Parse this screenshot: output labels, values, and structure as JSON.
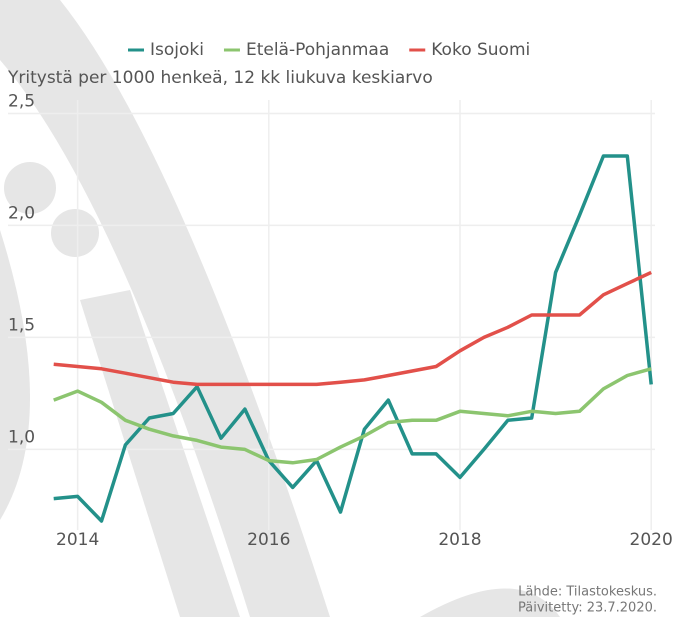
{
  "chart_data": {
    "type": "line",
    "subtitle": "Yritystä per 1000 henkeä, 12 kk liukuva keskiarvo",
    "x": [
      2013.75,
      2014.0,
      2014.25,
      2014.5,
      2014.75,
      2015.0,
      2015.25,
      2015.5,
      2015.75,
      2016.0,
      2016.25,
      2016.5,
      2016.75,
      2017.0,
      2017.25,
      2017.5,
      2017.75,
      2018.0,
      2018.25,
      2018.5,
      2018.75,
      2019.0,
      2019.25,
      2019.5,
      2019.75,
      2020.0
    ],
    "series": [
      {
        "name": "Isojoki",
        "color": "#23918a",
        "values": [
          0.78,
          0.79,
          0.68,
          1.02,
          1.14,
          1.16,
          1.28,
          1.05,
          1.18,
          0.95,
          0.83,
          0.95,
          0.72,
          1.09,
          1.22,
          0.98,
          0.98,
          0.875,
          1.0,
          1.13,
          1.14,
          1.79,
          2.045,
          2.31,
          2.31,
          1.29
        ]
      },
      {
        "name": "Etelä-Pohjanmaa",
        "color": "#8cc56f",
        "values": [
          1.22,
          1.26,
          1.21,
          1.13,
          1.09,
          1.06,
          1.04,
          1.01,
          1.0,
          0.95,
          0.94,
          0.955,
          1.01,
          1.06,
          1.12,
          1.13,
          1.13,
          1.17,
          1.16,
          1.15,
          1.17,
          1.16,
          1.17,
          1.27,
          1.33,
          1.36
        ]
      },
      {
        "name": "Koko Suomi",
        "color": "#e2504a",
        "values": [
          1.38,
          1.37,
          1.36,
          1.34,
          1.32,
          1.3,
          1.29,
          1.29,
          1.29,
          1.29,
          1.29,
          1.29,
          1.3,
          1.31,
          1.33,
          1.35,
          1.37,
          1.44,
          1.5,
          1.545,
          1.6,
          1.6,
          1.6,
          1.69,
          1.74,
          1.79
        ]
      }
    ],
    "xlim": [
      2013.69,
      2020.04
    ],
    "xticks": [
      2014,
      2016,
      2018,
      2020
    ],
    "ylim": [
      0.64,
      2.56
    ],
    "yticks": [
      {
        "value": 1.0,
        "label": "1,0"
      },
      {
        "value": 1.5,
        "label": "1,5"
      },
      {
        "value": 2.0,
        "label": "2,0"
      },
      {
        "value": 2.5,
        "label": "2,5"
      }
    ],
    "grid": true,
    "source": "Lähde: Tilastokeskus.",
    "updated": "Päivitetty: 23.7.2020."
  }
}
